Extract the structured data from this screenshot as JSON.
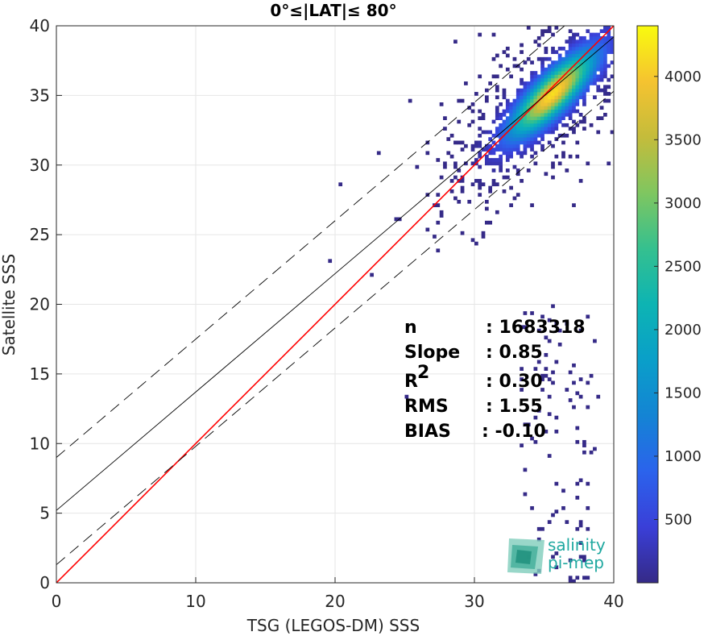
{
  "chart_data": {
    "type": "heatmap",
    "title": "0°≤|LAT|≤ 80°",
    "xlabel": "TSG (LEGOS-DM) SSS",
    "ylabel": "Satellite SSS",
    "xlim": [
      0,
      40
    ],
    "ylim": [
      0,
      40
    ],
    "xticks": [
      "0",
      "10",
      "20",
      "30",
      "40"
    ],
    "yticks": [
      "0",
      "5",
      "10",
      "15",
      "20",
      "25",
      "30",
      "35",
      "40"
    ],
    "grid": true,
    "colorbar": {
      "range": [
        0,
        4400
      ],
      "ticks": [
        "500",
        "1000",
        "1500",
        "2000",
        "2500",
        "3000",
        "3500",
        "4000"
      ],
      "colormap": "parula"
    },
    "density_peak": {
      "x": 35.5,
      "y": 35.0,
      "count": 4400
    },
    "lines": [
      {
        "name": "1:1",
        "color": "#ff0000",
        "style": "solid",
        "points": [
          [
            0,
            0
          ],
          [
            40,
            40
          ]
        ]
      },
      {
        "name": "fit",
        "color": "#000000",
        "style": "solid",
        "points": [
          [
            0,
            5.2
          ],
          [
            40,
            39.2
          ]
        ]
      },
      {
        "name": "fit+",
        "color": "#000000",
        "style": "dashed",
        "points": [
          [
            0,
            9.0
          ],
          [
            40,
            43.0
          ]
        ]
      },
      {
        "name": "fit-",
        "color": "#000000",
        "style": "dashed",
        "points": [
          [
            0,
            1.3
          ],
          [
            40,
            35.3
          ]
        ]
      }
    ],
    "stats": [
      {
        "label": "n",
        "value": ": 1683318"
      },
      {
        "label": "Slope",
        "value": ": 0.85"
      },
      {
        "label": "R",
        "sup": "2",
        "value": ": 0.30"
      },
      {
        "label": "RMS",
        "value": ": 1.55"
      },
      {
        "label": "BIAS",
        "value": ": -0.10"
      }
    ]
  },
  "logo": {
    "line1": "salinity",
    "line2": "pi-mep"
  }
}
